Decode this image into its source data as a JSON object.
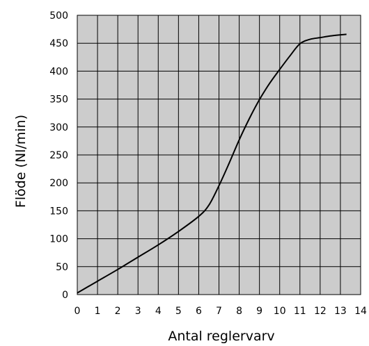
{
  "chart_data": {
    "type": "line",
    "title": "",
    "xlabel": "Antal reglervarv",
    "ylabel": "Flöde (Nl/min)",
    "xlim": [
      0,
      14
    ],
    "ylim": [
      0,
      500
    ],
    "x_ticks": [
      "0",
      "1",
      "2",
      "3",
      "4",
      "5",
      "6",
      "7",
      "8",
      "9",
      "10",
      "11",
      "12",
      "13",
      "14"
    ],
    "y_ticks": [
      "0",
      "50",
      "100",
      "150",
      "200",
      "250",
      "300",
      "350",
      "400",
      "450",
      "500"
    ],
    "grid": true,
    "background_color": "#cccccc",
    "line_color": "#000000",
    "series": [
      {
        "x": [
          0,
          1,
          2,
          3,
          4,
          5,
          6,
          6.5,
          7,
          7.5,
          8,
          8.5,
          9,
          9.5,
          10,
          10.5,
          11,
          11.5,
          12,
          12.5,
          13,
          13.3
        ],
        "y": [
          3,
          24,
          45,
          67,
          89,
          113,
          140,
          160,
          195,
          235,
          277,
          315,
          349,
          378,
          403,
          427,
          449,
          457,
          460,
          463,
          465,
          466
        ]
      }
    ]
  }
}
